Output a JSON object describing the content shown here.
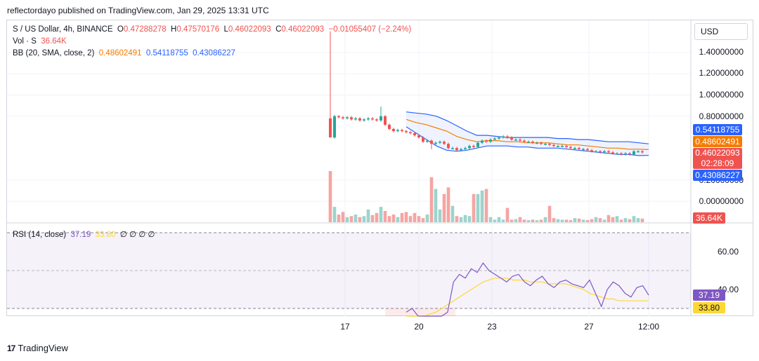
{
  "header": {
    "text": "reflectordayo published on TradingView.com, Jan 29, 2025 13:31 UTC"
  },
  "legend": {
    "symbol": "S / US Dollar, 4h, BINANCE",
    "o_label": "O",
    "o": "0.47288278",
    "h_label": "H",
    "h": "0.47570176",
    "l_label": "L",
    "l": "0.46022093",
    "c_label": "C",
    "c": "0.46022093",
    "change": "−0.01055407 (−2.24%)",
    "vol_label": "Vol · S",
    "vol": "36.64K",
    "bb_label": "BB (20, SMA, close, 2)",
    "bb_basis": "0.48602491",
    "bb_upper": "0.54118755",
    "bb_lower": "0.43086227",
    "rsi_label": "RSI (14, close)",
    "rsi": "37.19",
    "rsi_ma": "33.80",
    "rsi_extra": "∅ ∅ ∅ ∅"
  },
  "currency_button": "USD",
  "colors": {
    "up": "#26a69a",
    "down": "#ef5350",
    "bb_band": "#2962ff",
    "bb_basis": "#f57c00",
    "rsi": "#7e57c2",
    "rsi_ma": "#fdd835"
  },
  "price_axis": [
    "1.40000000",
    "1.20000000",
    "1.00000000",
    "0.80000000",
    "0.20000000",
    "0.00000000"
  ],
  "price_badges": {
    "upper": "0.54118755",
    "basis": "0.48602491",
    "price": "0.46022093",
    "countdown": "02:28:09",
    "lower": "0.43086227",
    "volume": "36.64K"
  },
  "rsi_axis": [
    "60.00",
    "40.00"
  ],
  "rsi_badges": {
    "rsi": "37.19",
    "ma": "33.80"
  },
  "x_axis": [
    "17",
    "20",
    "23",
    "27",
    "12:00"
  ],
  "footer": {
    "brand": "TradingView",
    "logo": "17"
  },
  "chart_data": [
    {
      "type": "candlestick",
      "symbol": "S / US Dollar, 4h, BINANCE",
      "last_candle": {
        "open": 0.47288278,
        "high": 0.47570176,
        "low": 0.46022093,
        "close": 0.46022093
      },
      "closes": [
        0.6,
        0.8,
        0.79,
        0.78,
        0.79,
        0.77,
        0.78,
        0.76,
        0.77,
        0.78,
        0.77,
        0.76,
        0.8,
        0.72,
        0.68,
        0.66,
        0.67,
        0.66,
        0.65,
        0.64,
        0.62,
        0.6,
        0.56,
        0.57,
        0.54,
        0.55,
        0.56,
        0.54,
        0.5,
        0.5,
        0.48,
        0.49,
        0.5,
        0.52,
        0.51,
        0.55,
        0.57,
        0.56,
        0.58,
        0.59,
        0.6,
        0.61,
        0.6,
        0.58,
        0.58,
        0.57,
        0.56,
        0.56,
        0.55,
        0.55,
        0.54,
        0.54,
        0.53,
        0.52,
        0.52,
        0.52,
        0.51,
        0.5,
        0.5,
        0.49,
        0.49,
        0.48,
        0.47,
        0.47,
        0.46,
        0.47,
        0.46,
        0.45,
        0.45,
        0.44,
        0.45,
        0.44,
        0.47,
        0.47,
        0.46
      ],
      "bollinger": {
        "upper": [
          0.84,
          0.83,
          0.82,
          0.8,
          0.76,
          0.71,
          0.66,
          0.62,
          0.62,
          0.61,
          0.6,
          0.6,
          0.6,
          0.6,
          0.6,
          0.59,
          0.59,
          0.58,
          0.58,
          0.57,
          0.56,
          0.56,
          0.56,
          0.55,
          0.54
        ],
        "basis": [
          0.77,
          0.74,
          0.72,
          0.69,
          0.66,
          0.61,
          0.58,
          0.56,
          0.57,
          0.57,
          0.56,
          0.56,
          0.55,
          0.55,
          0.55,
          0.54,
          0.53,
          0.53,
          0.52,
          0.51,
          0.5,
          0.5,
          0.49,
          0.49,
          0.486
        ],
        "lower": [
          0.7,
          0.64,
          0.58,
          0.52,
          0.48,
          0.47,
          0.48,
          0.5,
          0.52,
          0.52,
          0.52,
          0.51,
          0.51,
          0.5,
          0.5,
          0.5,
          0.49,
          0.48,
          0.47,
          0.46,
          0.45,
          0.44,
          0.44,
          0.43,
          0.431
        ]
      },
      "volume_last": "36.64K",
      "y_ticks": [
        0.0,
        0.2,
        0.8,
        1.0,
        1.2,
        1.4
      ],
      "x_ticks": [
        "17",
        "20",
        "23",
        "27",
        "12:00"
      ]
    },
    {
      "type": "line",
      "name": "RSI (14, close)",
      "ylim": [
        20,
        75
      ],
      "y_ticks": [
        40,
        60
      ],
      "series": [
        {
          "name": "RSI",
          "values": [
            28,
            30,
            26,
            22,
            24,
            21,
            25,
            28,
            44,
            48,
            46,
            51,
            49,
            54,
            50,
            48,
            46,
            44,
            47,
            48,
            44,
            42,
            45,
            47,
            43,
            41,
            44,
            45,
            43,
            42,
            41,
            45,
            38,
            31,
            40,
            44,
            42,
            38,
            36,
            41,
            42,
            37
          ]
        },
        {
          "name": "MA",
          "values": [
            20,
            22,
            24,
            25,
            27,
            28,
            30,
            32,
            34,
            36,
            38,
            40,
            42,
            44,
            45,
            46,
            46,
            46,
            45,
            45,
            45,
            44,
            44,
            44,
            43,
            43,
            43,
            43,
            42,
            41,
            40,
            38,
            37,
            36,
            35,
            35,
            34,
            34,
            34,
            34,
            34,
            34
          ]
        }
      ],
      "last_value": 37.19,
      "last_ma": 33.8
    }
  ]
}
